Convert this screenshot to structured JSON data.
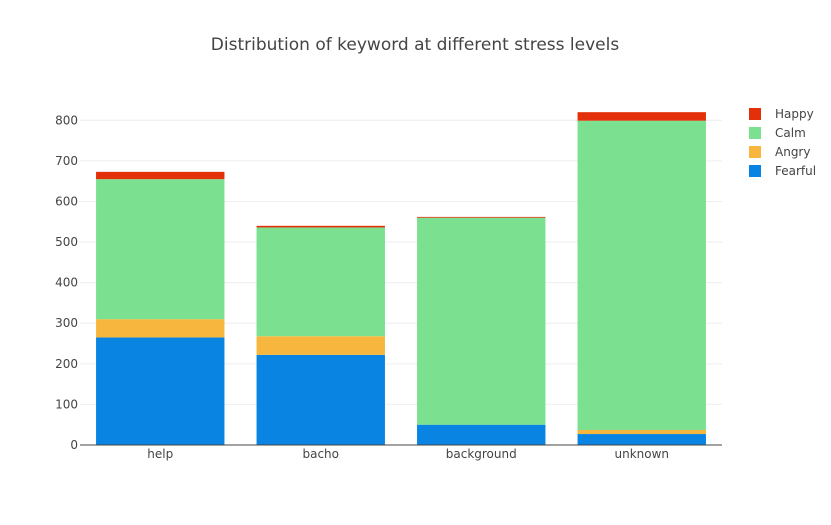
{
  "chart_data": {
    "type": "bar",
    "stacked": true,
    "title": "Distribution of keyword at different stress levels",
    "xlabel": "",
    "ylabel": "",
    "categories": [
      "help",
      "bacho",
      "background",
      "unknown"
    ],
    "ylim": [
      0,
      850
    ],
    "yticks": [
      0,
      100,
      200,
      300,
      400,
      500,
      600,
      700,
      800
    ],
    "grid": true,
    "legend_position": "top-right",
    "series": [
      {
        "name": "Fearful",
        "color": "#0a84e2",
        "values": [
          265,
          222,
          50,
          27
        ]
      },
      {
        "name": "Angry",
        "color": "#f7b73e",
        "values": [
          45,
          46,
          0,
          10
        ]
      },
      {
        "name": "Calm",
        "color": "#7be08f",
        "values": [
          345,
          268,
          510,
          762
        ]
      },
      {
        "name": "Happy",
        "color": "#e3300a",
        "values": [
          18,
          4,
          2,
          21
        ]
      }
    ]
  }
}
